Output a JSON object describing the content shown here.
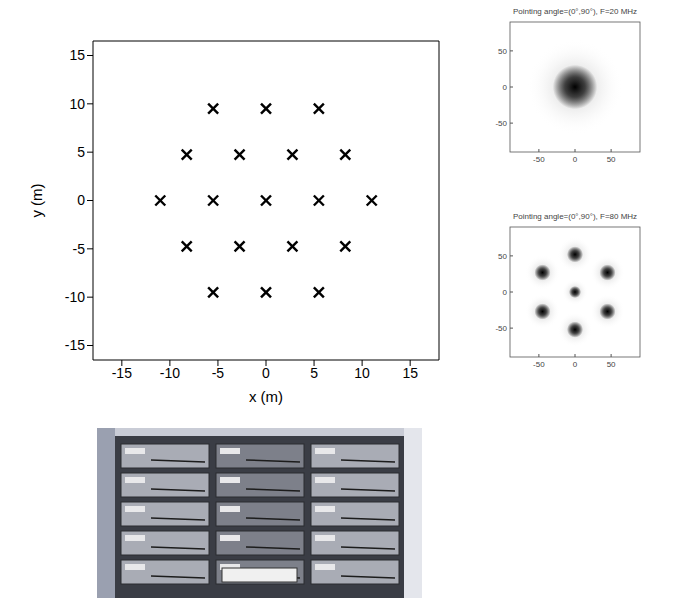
{
  "chart_data": {
    "type": "scatter",
    "x_label": "x (m)",
    "y_label": "y (m)",
    "x": [
      -5.5,
      0,
      5.5,
      -8.25,
      -2.75,
      2.75,
      8.25,
      -11,
      -5.5,
      0,
      5.5,
      11,
      -8.25,
      -2.75,
      2.75,
      8.25,
      -5.5,
      0,
      5.5
    ],
    "y": [
      9.5,
      9.5,
      9.5,
      4.75,
      4.75,
      4.75,
      4.75,
      0,
      0,
      0,
      0,
      0,
      -4.75,
      -4.75,
      -4.75,
      -4.75,
      -9.5,
      -9.5,
      -9.5
    ],
    "marker": "x",
    "color": "#000000",
    "xlim": [
      -18,
      18
    ],
    "ylim": [
      -16.5,
      16.5
    ],
    "xticks": [
      -15,
      -10,
      -5,
      0,
      5,
      10,
      15
    ],
    "yticks": [
      -15,
      -10,
      -5,
      0,
      5,
      10,
      15
    ],
    "grid": false
  },
  "beam_patterns": [
    {
      "title": "Pointing angle=(0°,90°), F=20 MHz",
      "xlim": [
        -90,
        90
      ],
      "ylim": [
        -90,
        90
      ],
      "xticks": [
        -50,
        0,
        50
      ],
      "yticks": [
        -50,
        0,
        50
      ],
      "lobes": [
        {
          "x": 0,
          "y": 0,
          "radius": 22
        }
      ]
    },
    {
      "title": "Pointing angle=(0°,90°), F=80 MHz",
      "xlim": [
        -90,
        90
      ],
      "ylim": [
        -90,
        90
      ],
      "xticks": [
        -50,
        0,
        50
      ],
      "yticks": [
        -50,
        0,
        50
      ],
      "lobes": [
        {
          "x": 0,
          "y": 0,
          "radius": 6
        },
        {
          "x": 0,
          "y": 52,
          "radius": 8
        },
        {
          "x": 0,
          "y": -52,
          "radius": 8
        },
        {
          "x": 45,
          "y": 27,
          "radius": 8
        },
        {
          "x": -45,
          "y": 27,
          "radius": 8
        },
        {
          "x": 45,
          "y": -27,
          "radius": 8
        },
        {
          "x": -45,
          "y": -27,
          "radius": 8
        }
      ]
    }
  ]
}
